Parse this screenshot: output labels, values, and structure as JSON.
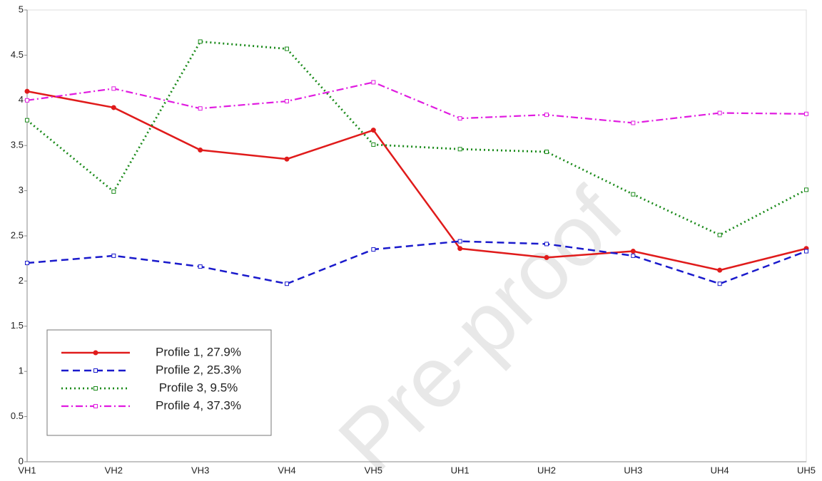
{
  "chart_data": {
    "type": "line",
    "categories": [
      "VH1",
      "VH2",
      "VH3",
      "VH4",
      "VH5",
      "UH1",
      "UH2",
      "UH3",
      "UH4",
      "UH5"
    ],
    "series": [
      {
        "name": "Profile 1, 27.9%",
        "color": "#e01b1b",
        "values": [
          4.1,
          3.92,
          3.45,
          3.35,
          3.67,
          2.36,
          2.26,
          2.33,
          2.12,
          2.36
        ]
      },
      {
        "name": "Profile 2, 25.3%",
        "color": "#1a1acc",
        "values": [
          2.2,
          2.28,
          2.16,
          1.97,
          2.35,
          2.44,
          2.41,
          2.28,
          1.97,
          2.33
        ]
      },
      {
        "name": "Profile 3, 9.5%",
        "color": "#1a8a1a",
        "values": [
          3.78,
          2.99,
          4.65,
          4.57,
          3.51,
          3.46,
          3.43,
          2.96,
          2.51,
          3.01
        ]
      },
      {
        "name": "Profile 4, 37.3%",
        "color": "#e01be0",
        "values": [
          4.0,
          4.13,
          3.91,
          3.99,
          4.2,
          3.8,
          3.84,
          3.75,
          3.86,
          3.85
        ]
      }
    ],
    "ylim": [
      0,
      5
    ],
    "yticks": [
      0,
      0.5,
      1,
      1.5,
      2,
      2.5,
      3,
      3.5,
      4,
      4.5,
      5
    ],
    "legend": "lower left",
    "watermark": "Pre-proof"
  }
}
